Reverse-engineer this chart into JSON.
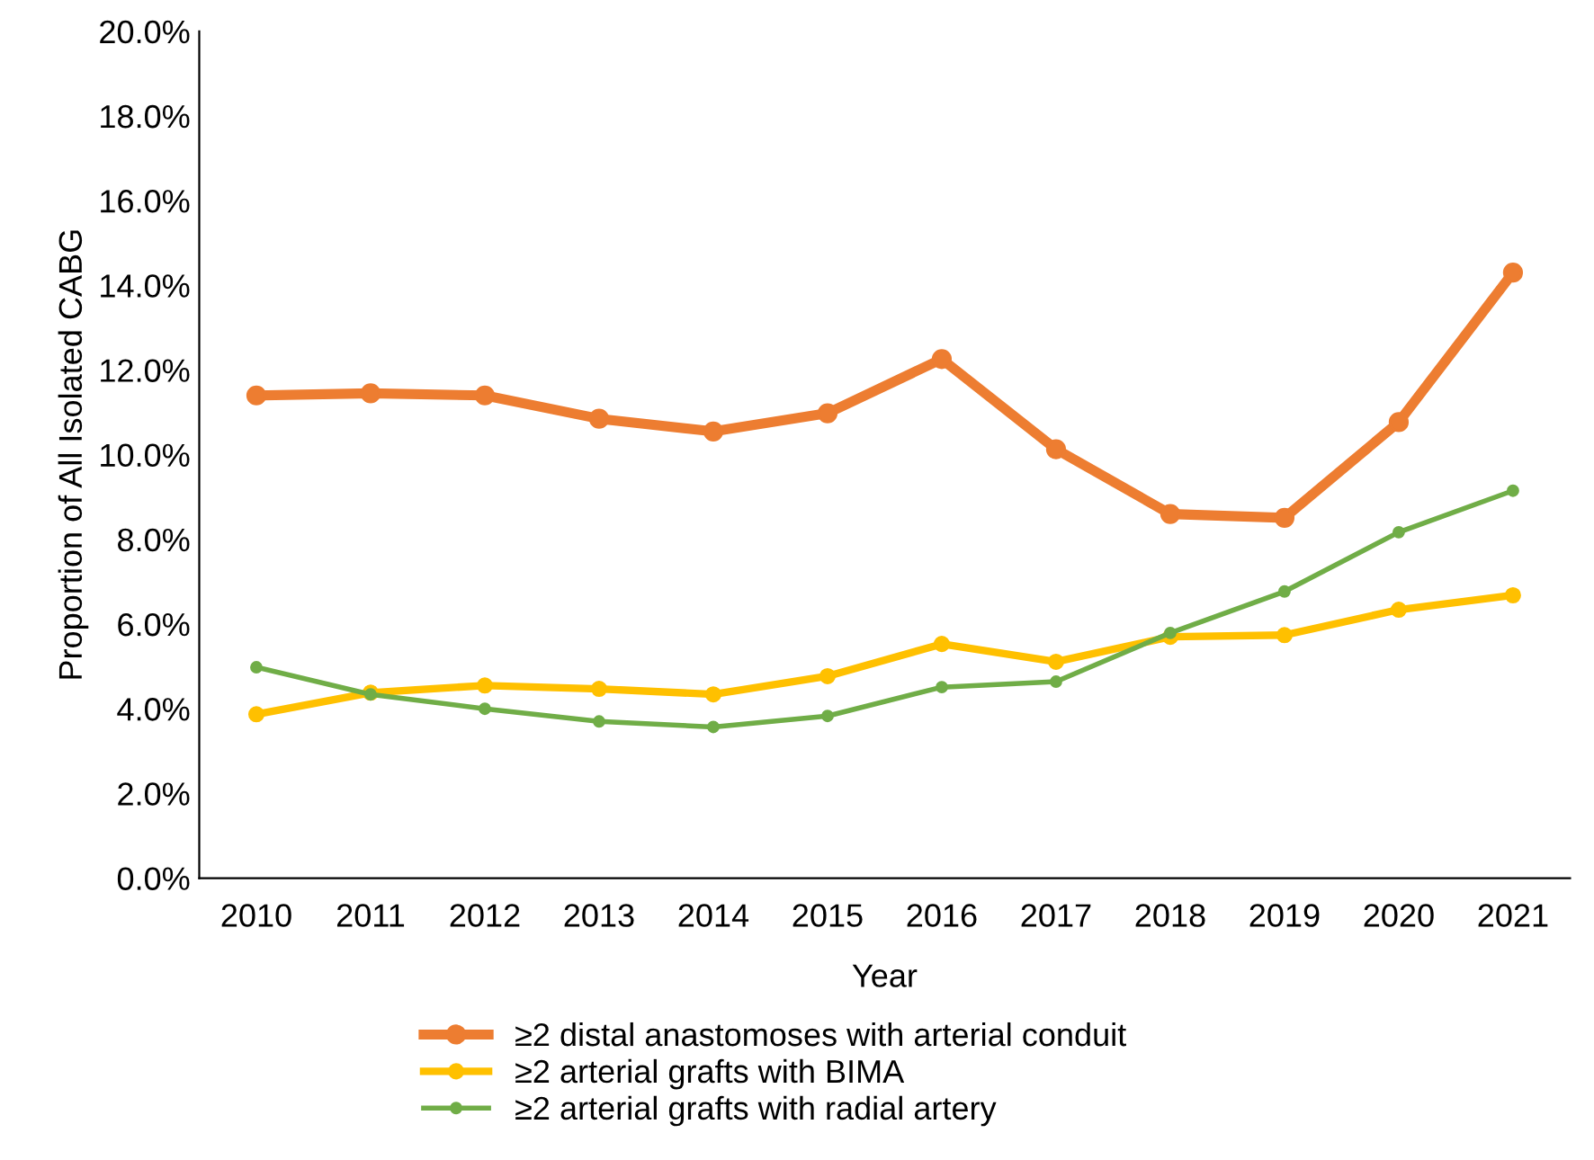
{
  "chart_data": {
    "type": "line",
    "xlabel": "Year",
    "ylabel": "Proportion of All Isolated CABG",
    "categories": [
      "2010",
      "2011",
      "2012",
      "2013",
      "2014",
      "2015",
      "2016",
      "2017",
      "2018",
      "2019",
      "2020",
      "2021"
    ],
    "series": [
      {
        "name": "≥2 distal anastomoses with arterial conduit",
        "color": "#ed7d31",
        "values": [
          11.4,
          11.45,
          11.4,
          10.85,
          10.55,
          10.98,
          12.26,
          10.13,
          8.6,
          8.51,
          10.77,
          14.3
        ]
      },
      {
        "name": "≥2 arterial grafts with BIMA",
        "color": "#ffc000",
        "values": [
          3.87,
          4.38,
          4.55,
          4.47,
          4.34,
          4.77,
          5.53,
          5.11,
          5.7,
          5.74,
          6.34,
          6.68
        ]
      },
      {
        "name": "≥2 arterial grafts with radial artery",
        "color": "#70ad47",
        "values": [
          4.98,
          4.34,
          4.0,
          3.7,
          3.57,
          3.83,
          4.51,
          4.64,
          5.79,
          6.77,
          8.17,
          9.15
        ]
      }
    ],
    "ylim": [
      0,
      20
    ],
    "yticks": [
      {
        "value": 0,
        "label": "0.0%"
      },
      {
        "value": 2,
        "label": "2.0%"
      },
      {
        "value": 4,
        "label": "4.0%"
      },
      {
        "value": 6,
        "label": "6.0%"
      },
      {
        "value": 8,
        "label": "8.0%"
      },
      {
        "value": 10,
        "label": "10.0%"
      },
      {
        "value": 12,
        "label": "12.0%"
      },
      {
        "value": 14,
        "label": "14.0%"
      },
      {
        "value": 16,
        "label": "16.0%"
      },
      {
        "value": 18,
        "label": "18.0%"
      },
      {
        "value": 20,
        "label": "20.0%"
      }
    ],
    "grid": false,
    "legend": "bottom",
    "marker": "circle",
    "line_style": "solid"
  }
}
